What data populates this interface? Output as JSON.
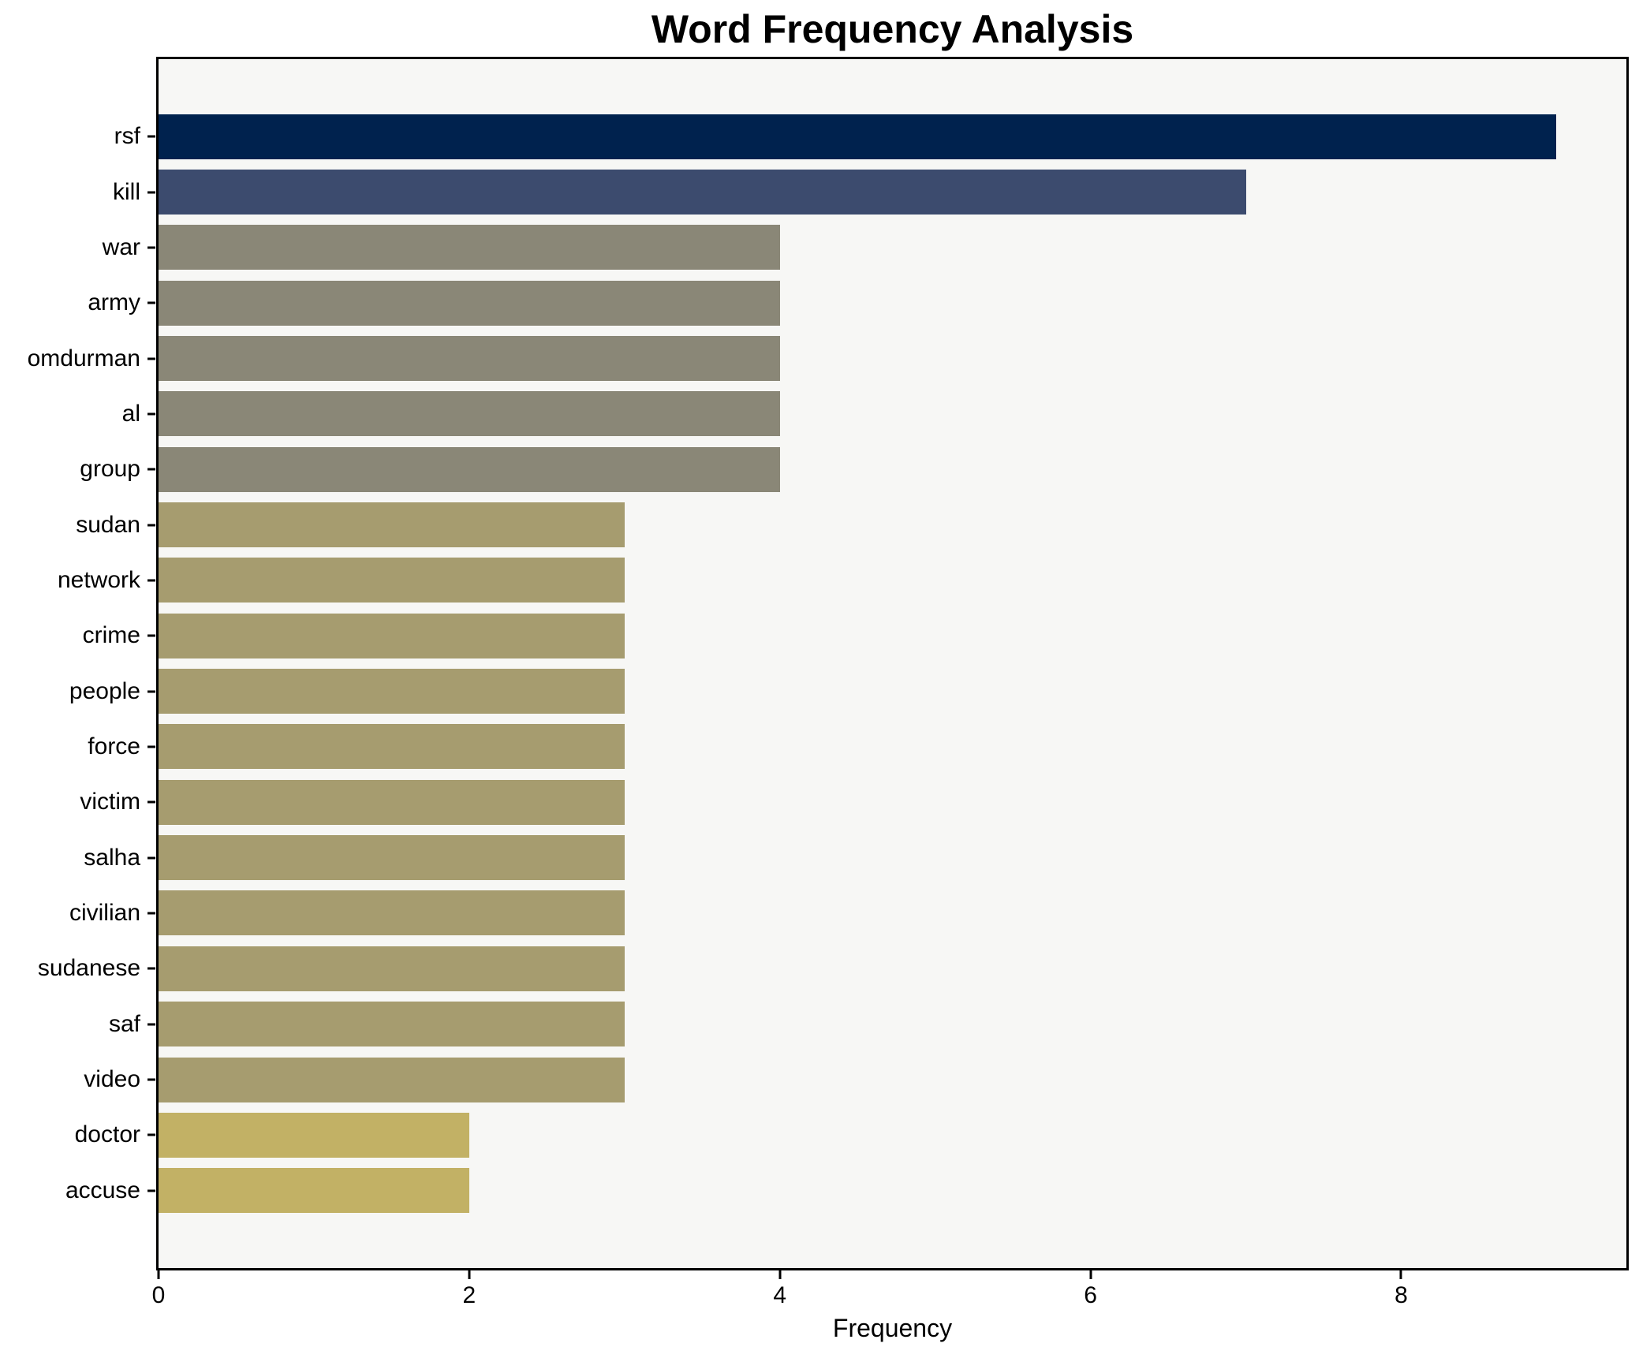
{
  "chart_data": {
    "type": "bar",
    "orientation": "horizontal",
    "title": "Word Frequency Analysis",
    "xlabel": "Frequency",
    "ylabel": "",
    "categories": [
      "rsf",
      "kill",
      "war",
      "army",
      "omdurman",
      "al",
      "group",
      "sudan",
      "network",
      "crime",
      "people",
      "force",
      "victim",
      "salha",
      "civilian",
      "sudanese",
      "saf",
      "video",
      "doctor",
      "accuse"
    ],
    "values": [
      9,
      7,
      4,
      4,
      4,
      4,
      4,
      3,
      3,
      3,
      3,
      3,
      3,
      3,
      3,
      3,
      3,
      3,
      2,
      2
    ],
    "bar_colors": [
      "#00224e",
      "#3c4b6e",
      "#8a8777",
      "#8a8777",
      "#8a8777",
      "#8a8777",
      "#8a8777",
      "#a69c6f",
      "#a69c6f",
      "#a69c6f",
      "#a69c6f",
      "#a69c6f",
      "#a69c6f",
      "#a69c6f",
      "#a69c6f",
      "#a69c6f",
      "#a69c6f",
      "#a69c6f",
      "#c2b165",
      "#c2b165"
    ],
    "xticks": [
      "0",
      "2",
      "4",
      "6",
      "8"
    ],
    "xtick_values": [
      0,
      2,
      4,
      6,
      8
    ],
    "xlim": [
      0,
      9.45
    ],
    "grid": false,
    "legend": null,
    "colors": {
      "figure_background": "#ffffff",
      "plot_background": "#f7f7f5",
      "axis": "#000000",
      "text": "#000000"
    }
  }
}
